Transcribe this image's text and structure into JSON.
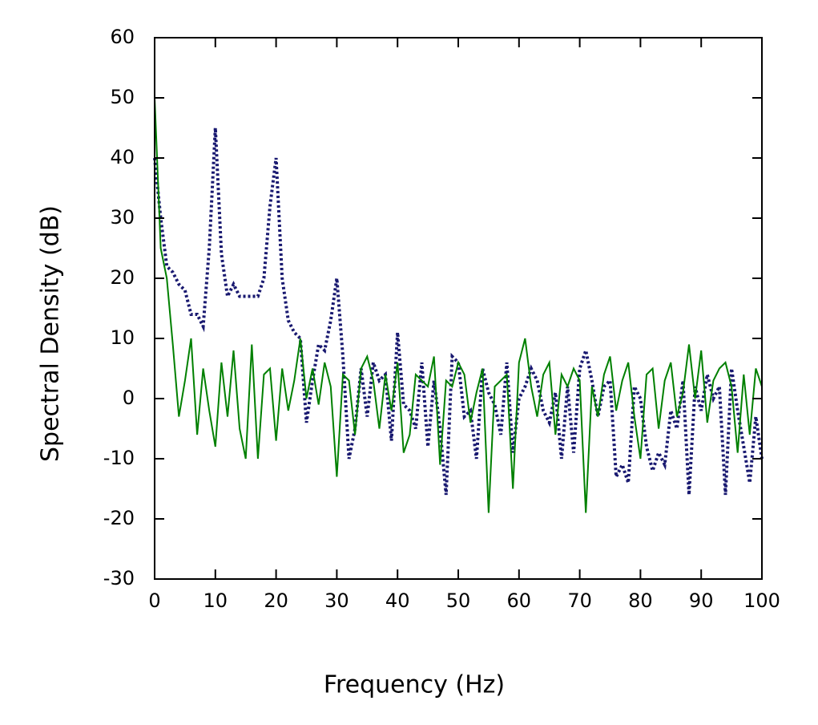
{
  "chart_data": {
    "type": "line",
    "xlabel": "Frequency (Hz)",
    "ylabel": "Spectral Density (dB)",
    "x": [
      0,
      1,
      2,
      3,
      4,
      5,
      6,
      7,
      8,
      9,
      10,
      11,
      12,
      13,
      14,
      15,
      16,
      17,
      18,
      19,
      20,
      21,
      22,
      23,
      24,
      25,
      26,
      27,
      28,
      29,
      30,
      31,
      32,
      33,
      34,
      35,
      36,
      37,
      38,
      39,
      40,
      41,
      42,
      43,
      44,
      45,
      46,
      47,
      48,
      49,
      50,
      51,
      52,
      53,
      54,
      55,
      56,
      57,
      58,
      59,
      60,
      61,
      62,
      63,
      64,
      65,
      66,
      67,
      68,
      69,
      70,
      71,
      72,
      73,
      74,
      75,
      76,
      77,
      78,
      79,
      80,
      81,
      82,
      83,
      84,
      85,
      86,
      87,
      88,
      89,
      90,
      91,
      92,
      93,
      94,
      95,
      96,
      97,
      98,
      99,
      100
    ],
    "series": [
      {
        "color": "#191970",
        "dash": true,
        "values": [
          40,
          30,
          22,
          21,
          19,
          18,
          14,
          14,
          12,
          25,
          45,
          24,
          17,
          19,
          17,
          17,
          17,
          17,
          20,
          32,
          40,
          20,
          13,
          11,
          10,
          -4,
          3,
          9,
          8,
          13,
          20,
          7,
          -10,
          -5,
          5,
          -3,
          6,
          3,
          4,
          -7,
          11,
          -1,
          -2,
          -5,
          6,
          -8,
          3,
          -5,
          -16,
          7,
          6,
          -3,
          -2,
          -10,
          5,
          1,
          -1,
          -6,
          6,
          -9,
          0,
          2,
          5,
          3,
          -2,
          -4,
          1,
          -10,
          2,
          -9,
          5,
          8,
          3,
          -3,
          2,
          3,
          -13,
          -11,
          -14,
          2,
          0,
          -8,
          -12,
          -9,
          -11,
          -2,
          -5,
          3,
          -16,
          2,
          -2,
          4,
          0,
          2,
          -16,
          5,
          -2,
          -8,
          -14,
          -3,
          -10
        ]
      },
      {
        "color": "#008000",
        "dash": false,
        "values": [
          50,
          25,
          20,
          9,
          -3,
          3,
          10,
          -6,
          5,
          -2,
          -8,
          6,
          -3,
          8,
          -5,
          -10,
          9,
          -10,
          4,
          5,
          -7,
          5,
          -2,
          3,
          10,
          0,
          5,
          -1,
          6,
          2,
          -13,
          4,
          3,
          -6,
          5,
          7,
          3,
          -5,
          4,
          -2,
          6,
          -9,
          -6,
          4,
          3,
          2,
          7,
          -11,
          3,
          2,
          6,
          4,
          -4,
          1,
          5,
          -19,
          2,
          3,
          4,
          -15,
          6,
          10,
          2,
          -3,
          4,
          6,
          -6,
          4,
          2,
          5,
          3,
          -19,
          2,
          -3,
          4,
          7,
          -2,
          3,
          6,
          -3,
          -10,
          4,
          5,
          -5,
          3,
          6,
          -3,
          1,
          9,
          0,
          8,
          -4,
          3,
          5,
          6,
          2,
          -9,
          4,
          -6,
          5,
          2
        ]
      }
    ],
    "xlim": [
      0,
      100
    ],
    "xticks": [
      0,
      10,
      20,
      30,
      40,
      50,
      60,
      70,
      80,
      90,
      100
    ],
    "ylim": [
      -30,
      60
    ],
    "yticks": [
      -30,
      -20,
      -10,
      0,
      10,
      20,
      30,
      40,
      50,
      60
    ],
    "grid": false
  }
}
